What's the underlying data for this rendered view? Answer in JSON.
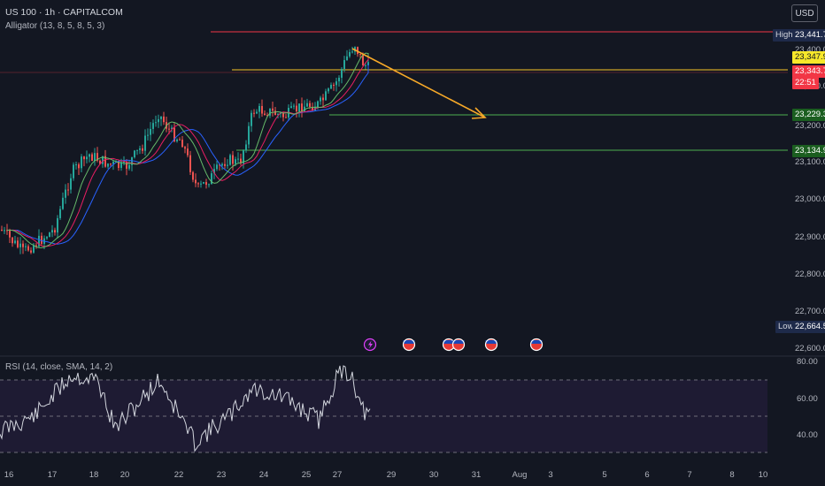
{
  "header": {
    "symbol_line": "US 100 · 1h · CAPITALCOM",
    "indicator_line": "Alligator (13, 8, 5, 8, 5, 3)"
  },
  "currency_button": "USD",
  "price_axis": {
    "ticks": [
      "23,400.0",
      "23,300.0",
      "23,200.0",
      "23,100.0",
      "23,000.0",
      "22,900.0",
      "22,800.0",
      "22,700.0",
      "22,600.0"
    ],
    "high_label": "High",
    "high_value": "23,441.7",
    "low_label": "Low",
    "low_value": "22,664.5",
    "level_yellow": "23,347.9",
    "last_price": "23,343.7",
    "countdown": "22:51",
    "level_green_1": "23,229.3",
    "level_green_2": "23,134.9"
  },
  "rsi": {
    "title": "RSI (14, close, SMA, 14, 2)",
    "ticks": [
      "80.00",
      "60.00",
      "40.00"
    ]
  },
  "time_axis": {
    "labels": [
      "16",
      "17",
      "18",
      "20",
      "22",
      "23",
      "24",
      "25",
      "27",
      "29",
      "30",
      "31",
      "Aug",
      "3",
      "5",
      "6",
      "7",
      "8",
      "10"
    ]
  },
  "colors": {
    "background": "#131722",
    "up_candle": "#26a69a",
    "down_candle": "#ef5350",
    "jaw": "#2962ff",
    "teeth": "#e91e63",
    "lips": "#66bb6a",
    "arrow": "#f7a928",
    "rsi_line": "#d1d4dc"
  },
  "icons": {
    "events": [
      "lightning-icon",
      "us-flag-icon",
      "us-flag-icon",
      "us-flag-icon",
      "us-flag-icon",
      "us-flag-icon"
    ]
  }
}
